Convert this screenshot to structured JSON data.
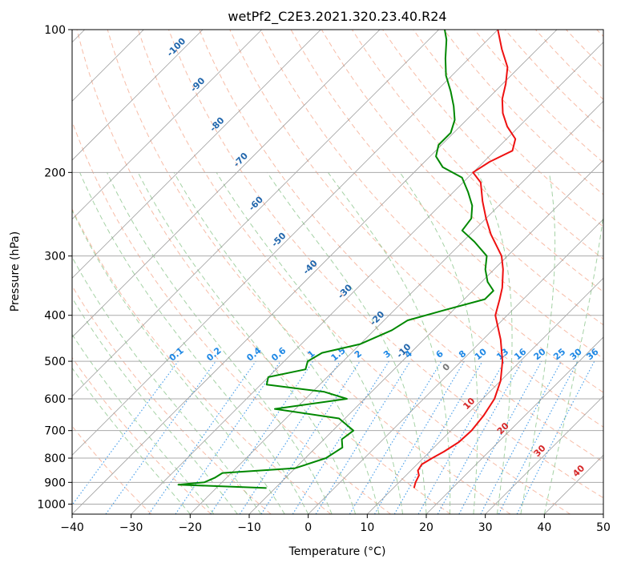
{
  "chart_data": {
    "type": "line",
    "title": "wetPf2_C2E3.2021.320.23.40.R24",
    "xlabel": "Temperature (°C)",
    "ylabel": "Pressure (hPa)",
    "xlim": [
      -40,
      50
    ],
    "ylim": [
      1050,
      100
    ],
    "y_scale": "log",
    "skew": "45 degrees",
    "grid": true,
    "x_ticks": [
      -40,
      -30,
      -20,
      -10,
      0,
      10,
      20,
      30,
      40,
      50
    ],
    "y_ticks": [
      100,
      200,
      300,
      400,
      500,
      600,
      700,
      800,
      900,
      1000
    ],
    "dry_adiabat_color": "#f4a58a",
    "moist_adiabat_color": "#7fbf7f",
    "mixing_ratio_color": "#1e88e5",
    "isotherm_color": "#888888",
    "series": [
      {
        "color": "#ee1111",
        "points": [
          {
            "p": 925,
            "t": 13.5
          },
          {
            "p": 900,
            "t": 12.8
          },
          {
            "p": 870,
            "t": 12.2
          },
          {
            "p": 850,
            "t": 11.2
          },
          {
            "p": 825,
            "t": 10.8
          },
          {
            "p": 800,
            "t": 11.5
          },
          {
            "p": 775,
            "t": 12.4
          },
          {
            "p": 740,
            "t": 13.3
          },
          {
            "p": 700,
            "t": 13.5
          },
          {
            "p": 650,
            "t": 13.0
          },
          {
            "p": 600,
            "t": 12.0
          },
          {
            "p": 550,
            "t": 10.0
          },
          {
            "p": 500,
            "t": 7.0
          },
          {
            "p": 450,
            "t": 3.0
          },
          {
            "p": 400,
            "t": -2.0
          },
          {
            "p": 370,
            "t": -4.0
          },
          {
            "p": 350,
            "t": -5.5
          },
          {
            "p": 320,
            "t": -8.5
          },
          {
            "p": 300,
            "t": -11.0
          },
          {
            "p": 270,
            "t": -16.5
          },
          {
            "p": 250,
            "t": -20.0
          },
          {
            "p": 230,
            "t": -23.5
          },
          {
            "p": 210,
            "t": -27.0
          },
          {
            "p": 200,
            "t": -30.0
          },
          {
            "p": 190,
            "t": -29.0
          },
          {
            "p": 180,
            "t": -27.0
          },
          {
            "p": 170,
            "t": -28.5
          },
          {
            "p": 160,
            "t": -32.0
          },
          {
            "p": 150,
            "t": -35.0
          },
          {
            "p": 140,
            "t": -37.5
          },
          {
            "p": 130,
            "t": -39.5
          },
          {
            "p": 120,
            "t": -42.0
          },
          {
            "p": 110,
            "t": -46.0
          },
          {
            "p": 100,
            "t": -50.0
          }
        ]
      },
      {
        "color": "#008800",
        "points": [
          {
            "p": 925,
            "t": -11.5
          },
          {
            "p": 910,
            "t": -27.0
          },
          {
            "p": 900,
            "t": -23.0
          },
          {
            "p": 880,
            "t": -22.0
          },
          {
            "p": 860,
            "t": -21.5
          },
          {
            "p": 840,
            "t": -10.0
          },
          {
            "p": 800,
            "t": -6.5
          },
          {
            "p": 760,
            "t": -5.5
          },
          {
            "p": 730,
            "t": -7.0
          },
          {
            "p": 700,
            "t": -6.5
          },
          {
            "p": 660,
            "t": -11.0
          },
          {
            "p": 630,
            "t": -23.5
          },
          {
            "p": 600,
            "t": -13.0
          },
          {
            "p": 580,
            "t": -18.0
          },
          {
            "p": 560,
            "t": -29.0
          },
          {
            "p": 540,
            "t": -30.0
          },
          {
            "p": 520,
            "t": -25.0
          },
          {
            "p": 500,
            "t": -26.0
          },
          {
            "p": 480,
            "t": -25.0
          },
          {
            "p": 460,
            "t": -20.0
          },
          {
            "p": 430,
            "t": -17.0
          },
          {
            "p": 410,
            "t": -16.0
          },
          {
            "p": 390,
            "t": -11.5
          },
          {
            "p": 370,
            "t": -6.5
          },
          {
            "p": 355,
            "t": -6.5
          },
          {
            "p": 340,
            "t": -9.0
          },
          {
            "p": 320,
            "t": -11.5
          },
          {
            "p": 300,
            "t": -13.5
          },
          {
            "p": 280,
            "t": -18.0
          },
          {
            "p": 265,
            "t": -22.0
          },
          {
            "p": 250,
            "t": -22.5
          },
          {
            "p": 235,
            "t": -24.5
          },
          {
            "p": 220,
            "t": -27.5
          },
          {
            "p": 205,
            "t": -31.0
          },
          {
            "p": 195,
            "t": -36.0
          },
          {
            "p": 185,
            "t": -39.0
          },
          {
            "p": 175,
            "t": -40.5
          },
          {
            "p": 165,
            "t": -40.5
          },
          {
            "p": 155,
            "t": -42.0
          },
          {
            "p": 145,
            "t": -44.5
          },
          {
            "p": 135,
            "t": -47.5
          },
          {
            "p": 125,
            "t": -51.0
          },
          {
            "p": 115,
            "t": -54.0
          },
          {
            "p": 105,
            "t": -57.0
          },
          {
            "p": 100,
            "t": -59.0
          }
        ]
      }
    ],
    "isotherm_labels": {
      "color": "#2166ac",
      "values": [
        "-100",
        "-90",
        "-80",
        "-70",
        "-60",
        "-50",
        "-40",
        "-30",
        "-20",
        "-10"
      ]
    },
    "mixing_ratio_labels": {
      "color": "#1e88e5",
      "values": [
        "0.1",
        "0.2",
        "0.4",
        "0.6",
        "1",
        "1.5",
        "2",
        "3",
        "4",
        "6",
        "8",
        "10",
        "13",
        "16",
        "20",
        "25",
        "30",
        "36"
      ]
    },
    "upper_isotherm_labels": {
      "color": "#d62728",
      "values": [
        "0",
        "10",
        "20",
        "30",
        "40"
      ]
    }
  }
}
